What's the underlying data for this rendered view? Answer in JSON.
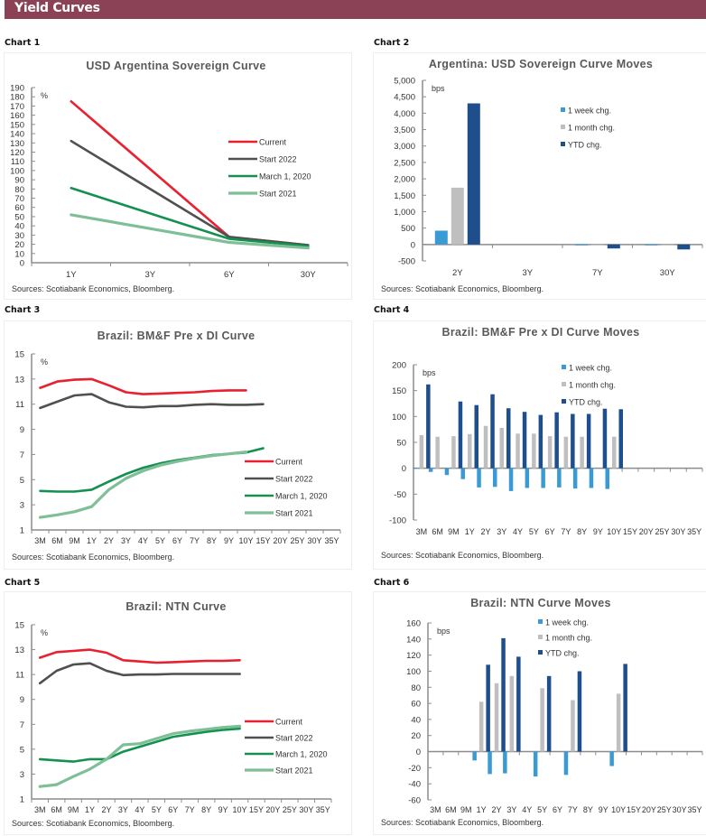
{
  "page": {
    "title": "Yield Curves"
  },
  "colors": {
    "banner": "#8b4257",
    "current": "#e8202f",
    "start2022": "#505050",
    "march2020": "#149050",
    "start2021": "#7fbf98",
    "week": "#3a9ad4",
    "month": "#bfbfbf",
    "ytd": "#1f4e8c"
  },
  "charts": [
    {
      "label": "Chart 1"
    },
    {
      "label": "Chart 2"
    },
    {
      "label": "Chart 3"
    },
    {
      "label": "Chart 4"
    },
    {
      "label": "Chart 5"
    },
    {
      "label": "Chart 6"
    }
  ],
  "chart_data": [
    {
      "type": "line",
      "title": "USD Argentina Sovereign Curve",
      "ylabel": "%",
      "ylim": [
        0,
        190
      ],
      "ytick_step": 10,
      "categories": [
        "1Y",
        "3Y",
        "6Y",
        "30Y"
      ],
      "series": [
        {
          "name": "Current",
          "color_key": "current",
          "values": [
            175,
            null,
            28,
            19
          ]
        },
        {
          "name": "Start 2022",
          "color_key": "start2022",
          "values": [
            132,
            null,
            28,
            19
          ]
        },
        {
          "name": "March 1, 2020",
          "color_key": "march2020",
          "values": [
            81,
            null,
            26,
            18
          ]
        },
        {
          "name": "Start 2021",
          "color_key": "start2021",
          "values": [
            52,
            null,
            22,
            16
          ]
        }
      ],
      "legend": "center-right",
      "source": "Sources: Scotiabank Economics, Bloomberg."
    },
    {
      "type": "bar",
      "title": "Argentina: USD Sovereign Curve Moves",
      "ylabel": "bps",
      "ylim": [
        -500,
        5000
      ],
      "ytick_step": 500,
      "ytick_labels": [
        "-500",
        "0",
        "500",
        "1,000",
        "1,500",
        "2,000",
        "2,500",
        "3,000",
        "3,500",
        "4,000",
        "4,500",
        "5,000"
      ],
      "categories": [
        "2Y",
        "3Y",
        "7Y",
        "30Y"
      ],
      "series": [
        {
          "name": "1 week chg.",
          "color_key": "week",
          "values": [
            420,
            null,
            -5,
            -5
          ]
        },
        {
          "name": "1 month chg.",
          "color_key": "month",
          "values": [
            1730,
            null,
            -3,
            -3
          ]
        },
        {
          "name": "YTD chg.",
          "color_key": "ytd",
          "values": [
            4300,
            null,
            -120,
            -150
          ]
        }
      ],
      "legend": "top-right",
      "source": "Sources: Scotiabank Economics, Bloomberg."
    },
    {
      "type": "line",
      "title": "Brazil: BM&F Pre x DI Curve",
      "ylabel": "%",
      "ylim": [
        1,
        15
      ],
      "ytick_step": 2,
      "categories": [
        "3M",
        "6M",
        "9M",
        "1Y",
        "2Y",
        "3Y",
        "4Y",
        "5Y",
        "6Y",
        "7Y",
        "8Y",
        "9Y",
        "10Y",
        "15Y",
        "20Y",
        "25Y",
        "30Y",
        "35Y"
      ],
      "series": [
        {
          "name": "Current",
          "color_key": "current",
          "values": [
            12.3,
            12.8,
            12.95,
            13.0,
            12.5,
            11.95,
            11.8,
            11.85,
            11.9,
            11.95,
            12.05,
            12.1,
            12.1,
            null,
            null,
            null,
            null,
            null
          ]
        },
        {
          "name": "Start 2022",
          "color_key": "start2022",
          "values": [
            10.7,
            11.2,
            11.7,
            11.8,
            11.15,
            10.8,
            10.75,
            10.85,
            10.85,
            10.95,
            11.0,
            10.95,
            10.95,
            11.0,
            null,
            null,
            null,
            null
          ]
        },
        {
          "name": "March 1, 2020",
          "color_key": "march2020",
          "values": [
            4.1,
            4.05,
            4.05,
            4.2,
            4.85,
            5.45,
            5.95,
            6.3,
            6.55,
            6.75,
            6.95,
            7.05,
            7.15,
            7.5,
            null,
            null,
            null,
            null
          ]
        },
        {
          "name": "Start 2021",
          "color_key": "start2021",
          "values": [
            2.0,
            2.2,
            2.45,
            2.85,
            4.2,
            5.1,
            5.7,
            6.15,
            6.45,
            6.7,
            6.9,
            7.05,
            7.2,
            null,
            null,
            null,
            null,
            null
          ]
        }
      ],
      "legend": "bottom-right",
      "source": "Sources: Scotiabank Economics, Bloomberg."
    },
    {
      "type": "bar",
      "title": "Brazil: BM&F Pre x DI Curve Moves",
      "ylabel": "bps",
      "ylim": [
        -100,
        200
      ],
      "ytick_step": 50,
      "ytick_labels": [
        "-100",
        "-50",
        "0",
        "50",
        "100",
        "150",
        "200"
      ],
      "categories": [
        "3M",
        "6M",
        "9M",
        "1Y",
        "2Y",
        "3Y",
        "4Y",
        "5Y",
        "6Y",
        "7Y",
        "8Y",
        "9Y",
        "10Y",
        "15Y",
        "20Y",
        "25Y",
        "30Y",
        "35Y"
      ],
      "series": [
        {
          "name": "1 week chg.",
          "color_key": "week",
          "values": [
            1,
            -7,
            -13,
            -21,
            -37,
            -36,
            -44,
            -38,
            -38,
            -37,
            -39,
            -38,
            -40,
            null,
            null,
            null,
            null,
            null
          ]
        },
        {
          "name": "1 month chg.",
          "color_key": "month",
          "values": [
            64,
            61,
            62,
            66,
            82,
            78,
            67,
            67,
            62,
            61,
            61,
            null,
            61,
            null,
            null,
            null,
            null,
            null
          ]
        },
        {
          "name": "YTD chg.",
          "color_key": "ytd",
          "values": [
            162,
            null,
            129,
            122,
            143,
            116,
            109,
            103,
            108,
            105,
            105,
            115,
            114,
            null,
            null,
            null,
            null,
            null
          ]
        }
      ],
      "legend": "top-right",
      "source": "Sources: Scotiabank Economics, Bloomberg."
    },
    {
      "type": "line",
      "title": "Brazil: NTN Curve",
      "ylabel": "%",
      "ylim": [
        1,
        15
      ],
      "ytick_step": 2,
      "categories": [
        "3M",
        "6M",
        "9M",
        "1Y",
        "2Y",
        "3Y",
        "4Y",
        "5Y",
        "6Y",
        "7Y",
        "8Y",
        "9Y",
        "10Y",
        "15Y",
        "20Y",
        "25Y",
        "30Y",
        "35Y"
      ],
      "series": [
        {
          "name": "Current",
          "color_key": "current",
          "values": [
            12.35,
            12.8,
            12.9,
            13.0,
            12.75,
            12.15,
            12.05,
            11.95,
            12.0,
            12.05,
            12.1,
            12.1,
            12.15,
            null,
            null,
            null,
            null,
            null
          ]
        },
        {
          "name": "Start 2022",
          "color_key": "start2022",
          "values": [
            10.3,
            11.3,
            11.8,
            11.9,
            11.3,
            10.95,
            11.0,
            11.0,
            11.05,
            11.05,
            11.05,
            11.05,
            11.05,
            null,
            null,
            null,
            null,
            null
          ]
        },
        {
          "name": "March 1, 2020",
          "color_key": "march2020",
          "values": [
            4.2,
            4.1,
            4.0,
            4.2,
            4.2,
            4.8,
            5.2,
            5.6,
            6.0,
            6.2,
            6.4,
            6.55,
            6.65,
            null,
            null,
            null,
            null,
            null
          ]
        },
        {
          "name": "Start 2021",
          "color_key": "start2021",
          "values": [
            2.0,
            2.15,
            2.8,
            3.4,
            4.2,
            5.35,
            5.45,
            5.85,
            6.25,
            6.45,
            6.6,
            6.75,
            6.85,
            null,
            null,
            null,
            null,
            null
          ]
        }
      ],
      "legend": "bottom-right",
      "source": "Sources: Scotiabank Economics, Bloomberg."
    },
    {
      "type": "bar",
      "title": "Brazil: NTN Curve Moves",
      "ylabel": "bps",
      "ylim": [
        -60,
        160
      ],
      "ytick_step": 20,
      "ytick_labels": [
        "-60",
        "-40",
        "-20",
        "0",
        "20",
        "40",
        "60",
        "80",
        "100",
        "120",
        "140",
        "160"
      ],
      "categories": [
        "3M",
        "6M",
        "9M",
        "1Y",
        "2Y",
        "3Y",
        "4Y",
        "5Y",
        "6Y",
        "7Y",
        "8Y",
        "9Y",
        "10Y",
        "15Y",
        "20Y",
        "25Y",
        "30Y",
        "35Y"
      ],
      "series": [
        {
          "name": "1 week chg.",
          "color_key": "week",
          "values": [
            null,
            null,
            null,
            -11,
            -28,
            -27,
            null,
            -31,
            null,
            -29,
            null,
            null,
            -18,
            null,
            null,
            null,
            null,
            null
          ]
        },
        {
          "name": "1 month chg.",
          "color_key": "month",
          "values": [
            null,
            null,
            null,
            62,
            85,
            94,
            null,
            79,
            null,
            64,
            null,
            null,
            72,
            null,
            null,
            null,
            null,
            null
          ]
        },
        {
          "name": "YTD chg.",
          "color_key": "ytd",
          "values": [
            null,
            null,
            null,
            108,
            141,
            118,
            null,
            94,
            null,
            100,
            null,
            null,
            109,
            null,
            null,
            null,
            null,
            null
          ]
        }
      ],
      "legend": "top-right",
      "source": "Sources: Scotiabank Economics, Bloomberg."
    }
  ]
}
